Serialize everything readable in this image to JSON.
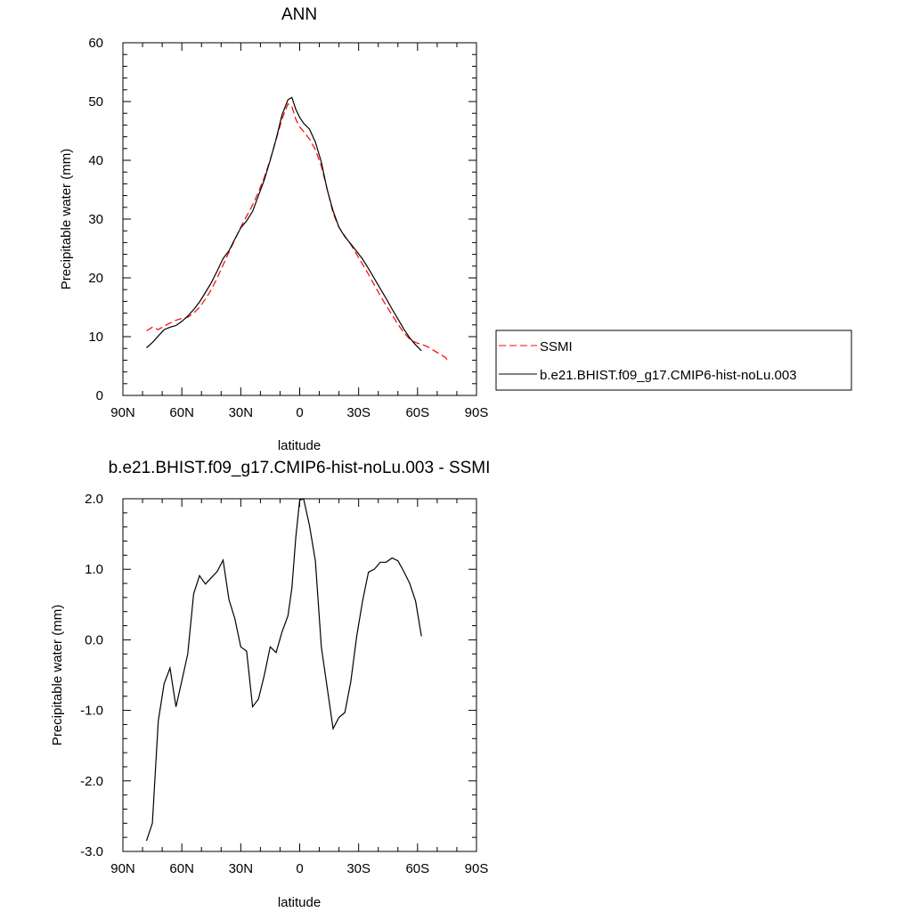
{
  "chart_data": [
    {
      "type": "line",
      "title": "ANN",
      "xlabel": "latitude",
      "ylabel": "Precipitable water (mm)",
      "xlim": [
        90,
        -90
      ],
      "ylim": [
        0,
        60
      ],
      "x_ticks": [
        90,
        60,
        30,
        0,
        -30,
        -60,
        -90
      ],
      "x_tick_labels": [
        "90N",
        "60N",
        "30N",
        "0",
        "30S",
        "60S",
        "90S"
      ],
      "y_ticks": [
        0,
        10,
        20,
        30,
        40,
        50,
        60
      ],
      "y_tick_labels": [
        "0",
        "10",
        "20",
        "30",
        "40",
        "50",
        "60"
      ],
      "legend": "right",
      "series": [
        {
          "name": "SSMI",
          "color": "#ff0000",
          "dash": "dashed",
          "x": [
            78,
            75,
            72,
            69,
            66,
            63,
            60,
            57,
            54,
            51,
            48,
            45,
            42,
            39,
            36,
            33,
            30,
            27,
            24,
            21,
            18,
            15,
            12,
            9,
            6,
            4,
            2,
            0,
            -2,
            -5,
            -8,
            -11,
            -14,
            -17,
            -20,
            -23,
            -26,
            -29,
            -32,
            -35,
            -38,
            -41,
            -44,
            -47,
            -50,
            -53,
            -56,
            -59,
            -62,
            -65,
            -68,
            -71,
            -74,
            -76
          ],
          "y": [
            11.0,
            11.6,
            11.2,
            11.8,
            12.3,
            12.8,
            13.1,
            13.3,
            14.0,
            15.0,
            16.4,
            18.0,
            20.0,
            22.2,
            24.4,
            26.5,
            28.6,
            30.5,
            32.4,
            34.6,
            37.1,
            40.1,
            43.5,
            47.0,
            49.6,
            49.2,
            47.0,
            45.7,
            44.9,
            43.6,
            41.8,
            39.0,
            35.1,
            31.0,
            28.6,
            27.1,
            25.7,
            24.0,
            22.3,
            20.6,
            18.8,
            17.0,
            15.3,
            13.7,
            12.1,
            10.7,
            9.6,
            9.0,
            8.7,
            8.3,
            7.7,
            7.1,
            6.5,
            5.8
          ]
        },
        {
          "name": "b.e21.BHIST.f09_g17.CMIP6-hist-noLu.003",
          "color": "#000000",
          "dash": "solid",
          "x": [
            78,
            75,
            72,
            69,
            66,
            63,
            60,
            57,
            54,
            51,
            48,
            45,
            42,
            39,
            36,
            33,
            30,
            27,
            24,
            21,
            18,
            15,
            12,
            9,
            6,
            4,
            2,
            0,
            -2,
            -5,
            -8,
            -11,
            -14,
            -17,
            -20,
            -23,
            -26,
            -29,
            -32,
            -35,
            -38,
            -41,
            -44,
            -47,
            -50,
            -53,
            -56,
            -59,
            -62
          ],
          "y": [
            8.1,
            9.0,
            10.1,
            11.2,
            11.6,
            11.9,
            12.6,
            13.5,
            14.6,
            15.9,
            17.5,
            19.2,
            21.2,
            23.3,
            24.6,
            26.6,
            28.5,
            29.7,
            31.3,
            34.0,
            36.7,
            40.0,
            43.6,
            47.7,
            50.3,
            50.7,
            48.7,
            47.3,
            46.3,
            45.3,
            43.1,
            39.7,
            35.0,
            31.4,
            28.6,
            27.0,
            25.8,
            24.5,
            23.2,
            21.6,
            19.9,
            18.2,
            16.5,
            14.7,
            13.0,
            11.3,
            9.8,
            8.6,
            7.6
          ]
        }
      ]
    },
    {
      "type": "line",
      "title": "b.e21.BHIST.f09_g17.CMIP6-hist-noLu.003 - SSMI",
      "xlabel": "latitude",
      "ylabel": "Precipitable water (mm)",
      "xlim": [
        90,
        -90
      ],
      "ylim": [
        -3,
        2
      ],
      "x_ticks": [
        90,
        60,
        30,
        0,
        -30,
        -60,
        -90
      ],
      "x_tick_labels": [
        "90N",
        "60N",
        "30N",
        "0",
        "30S",
        "60S",
        "90S"
      ],
      "y_ticks": [
        -3,
        -2,
        -1,
        0,
        1,
        2
      ],
      "y_tick_labels": [
        "-3.0",
        "-2.0",
        "-1.0",
        "0.0",
        "1.0",
        "2.0"
      ],
      "series": [
        {
          "color": "#000000",
          "dash": "solid",
          "x": [
            78,
            75,
            72,
            69,
            66,
            63,
            60,
            57,
            54,
            51,
            48,
            45,
            42,
            39,
            36,
            33,
            30,
            27,
            24,
            21,
            18,
            15,
            12,
            9,
            6,
            4,
            2,
            0,
            -2,
            -5,
            -8,
            -11,
            -14,
            -17,
            -20,
            -23,
            -26,
            -29,
            -32,
            -35,
            -38,
            -41,
            -44,
            -47,
            -50,
            -53,
            -56,
            -59,
            -62
          ],
          "y": [
            -2.85,
            -2.6,
            -1.15,
            -0.62,
            -0.4,
            -0.95,
            -0.58,
            -0.2,
            0.65,
            0.91,
            0.79,
            0.88,
            0.97,
            1.13,
            0.57,
            0.3,
            -0.1,
            -0.16,
            -0.95,
            -0.84,
            -0.5,
            -0.1,
            -0.18,
            0.11,
            0.34,
            0.73,
            1.45,
            1.98,
            2.0,
            1.62,
            1.12,
            -0.1,
            -0.68,
            -1.26,
            -1.1,
            -1.03,
            -0.6,
            0.05,
            0.55,
            0.96,
            1.0,
            1.1,
            1.1,
            1.16,
            1.12,
            0.97,
            0.8,
            0.55,
            0.05
          ]
        }
      ]
    }
  ]
}
